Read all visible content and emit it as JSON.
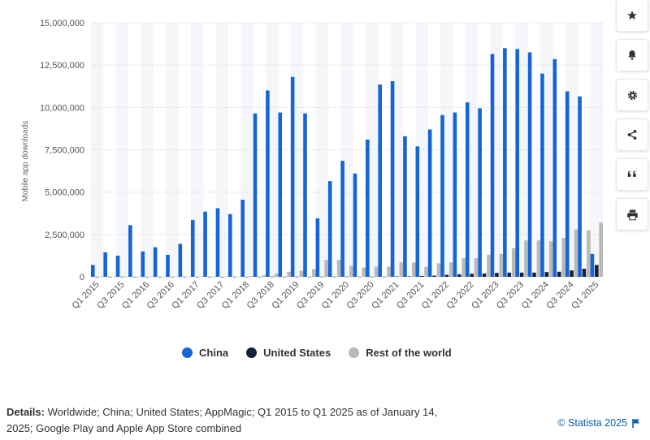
{
  "chart_data": {
    "type": "bar",
    "ylabel": "Mobile app downloads",
    "ylim": [
      0,
      15000000
    ],
    "yticks": [
      0,
      2500000,
      5000000,
      7500000,
      10000000,
      12500000,
      15000000
    ],
    "ytick_labels": [
      "0",
      "2,500,000",
      "5,000,000",
      "7,500,000",
      "10,000,000",
      "12,500,000",
      "15,000,000"
    ],
    "grid": true,
    "legend_position": "bottom",
    "categories": [
      "Q1 2015",
      "Q2 2015",
      "Q3 2015",
      "Q4 2015",
      "Q1 2016",
      "Q2 2016",
      "Q3 2016",
      "Q4 2016",
      "Q1 2017",
      "Q2 2017",
      "Q3 2017",
      "Q4 2017",
      "Q1 2018",
      "Q2 2018",
      "Q3 2018",
      "Q4 2018",
      "Q1 2019",
      "Q2 2019",
      "Q3 2019",
      "Q4 2019",
      "Q1 2020",
      "Q2 2020",
      "Q3 2020",
      "Q4 2020",
      "Q1 2021",
      "Q2 2021",
      "Q3 2021",
      "Q4 2021",
      "Q1 2022",
      "Q2 2022",
      "Q3 2022",
      "Q4 2022",
      "Q1 2023",
      "Q2 2023",
      "Q3 2023",
      "Q4 2023",
      "Q1 2024",
      "Q2 2024",
      "Q3 2024",
      "Q4 2024",
      "Q1 2025"
    ],
    "shown_tick_labels": [
      "Q1 2015",
      "Q3 2015",
      "Q1 2016",
      "Q3 2016",
      "Q1 2017",
      "Q3 2017",
      "Q1 2018",
      "Q3 2018",
      "Q1 2019",
      "Q3 2019",
      "Q1 2020",
      "Q3 2020",
      "Q1 2021",
      "Q3 2021",
      "Q1 2022",
      "Q3 2022",
      "Q1 2023",
      "Q3 2023",
      "Q1 2024",
      "Q3 2024",
      "Q1 2025"
    ],
    "series": [
      {
        "name": "China",
        "color": "#1565d8",
        "values": [
          700000,
          1450000,
          1250000,
          3050000,
          1500000,
          1750000,
          1300000,
          1950000,
          3350000,
          3850000,
          4050000,
          3700000,
          4550000,
          9650000,
          11000000,
          9700000,
          11800000,
          9650000,
          3450000,
          5650000,
          6850000,
          6100000,
          8100000,
          11350000,
          11550000,
          8300000,
          7700000,
          8700000,
          9550000,
          9700000,
          10300000,
          9950000,
          13150000,
          13500000,
          13450000,
          13250000,
          12000000,
          12850000,
          10950000,
          10650000,
          1350000
        ]
      },
      {
        "name": "United States",
        "color": "#14213d",
        "values": [
          5000,
          5000,
          5000,
          5000,
          5000,
          5000,
          5000,
          5000,
          5000,
          5000,
          5000,
          5000,
          5000,
          5000,
          10000,
          10000,
          10000,
          10000,
          10000,
          10000,
          10000,
          10000,
          10000,
          10000,
          20000,
          30000,
          50000,
          70000,
          120000,
          150000,
          180000,
          200000,
          230000,
          250000,
          250000,
          250000,
          280000,
          300000,
          380000,
          480000,
          700000
        ]
      },
      {
        "name": "Rest of the world",
        "color": "#b9b9b9",
        "values": [
          10000,
          10000,
          10000,
          10000,
          10000,
          10000,
          10000,
          10000,
          20000,
          20000,
          20000,
          20000,
          50000,
          100000,
          200000,
          300000,
          350000,
          450000,
          1000000,
          1000000,
          650000,
          550000,
          600000,
          600000,
          850000,
          850000,
          600000,
          800000,
          850000,
          1100000,
          1100000,
          1300000,
          1350000,
          1700000,
          2150000,
          2150000,
          2100000,
          2300000,
          2800000,
          2750000,
          3200000
        ]
      }
    ],
    "series_order_in_plot": [
      "Rest of the world",
      "China",
      "United States"
    ]
  },
  "legend": [
    {
      "label": "China",
      "color": "#1565d8"
    },
    {
      "label": "United States",
      "color": "#14213d"
    },
    {
      "label": "Rest of the world",
      "color": "#b9b9b9"
    }
  ],
  "details": {
    "label": "Details:",
    "text": "Worldwide; China; United States; AppMagic; Q1 2015 to Q1 2025 as of January 14, 2025; Google Play and Apple App Store combined"
  },
  "copyright": "© Statista 2025",
  "sidebar": [
    {
      "icon": "star-icon",
      "glyph": "★"
    },
    {
      "icon": "bell-icon",
      "glyph": "🔔"
    },
    {
      "icon": "gear-icon",
      "glyph": "⚙"
    },
    {
      "icon": "share-icon",
      "glyph": "<"
    },
    {
      "icon": "quote-icon",
      "glyph": "“"
    },
    {
      "icon": "print-icon",
      "glyph": "⎙"
    }
  ]
}
